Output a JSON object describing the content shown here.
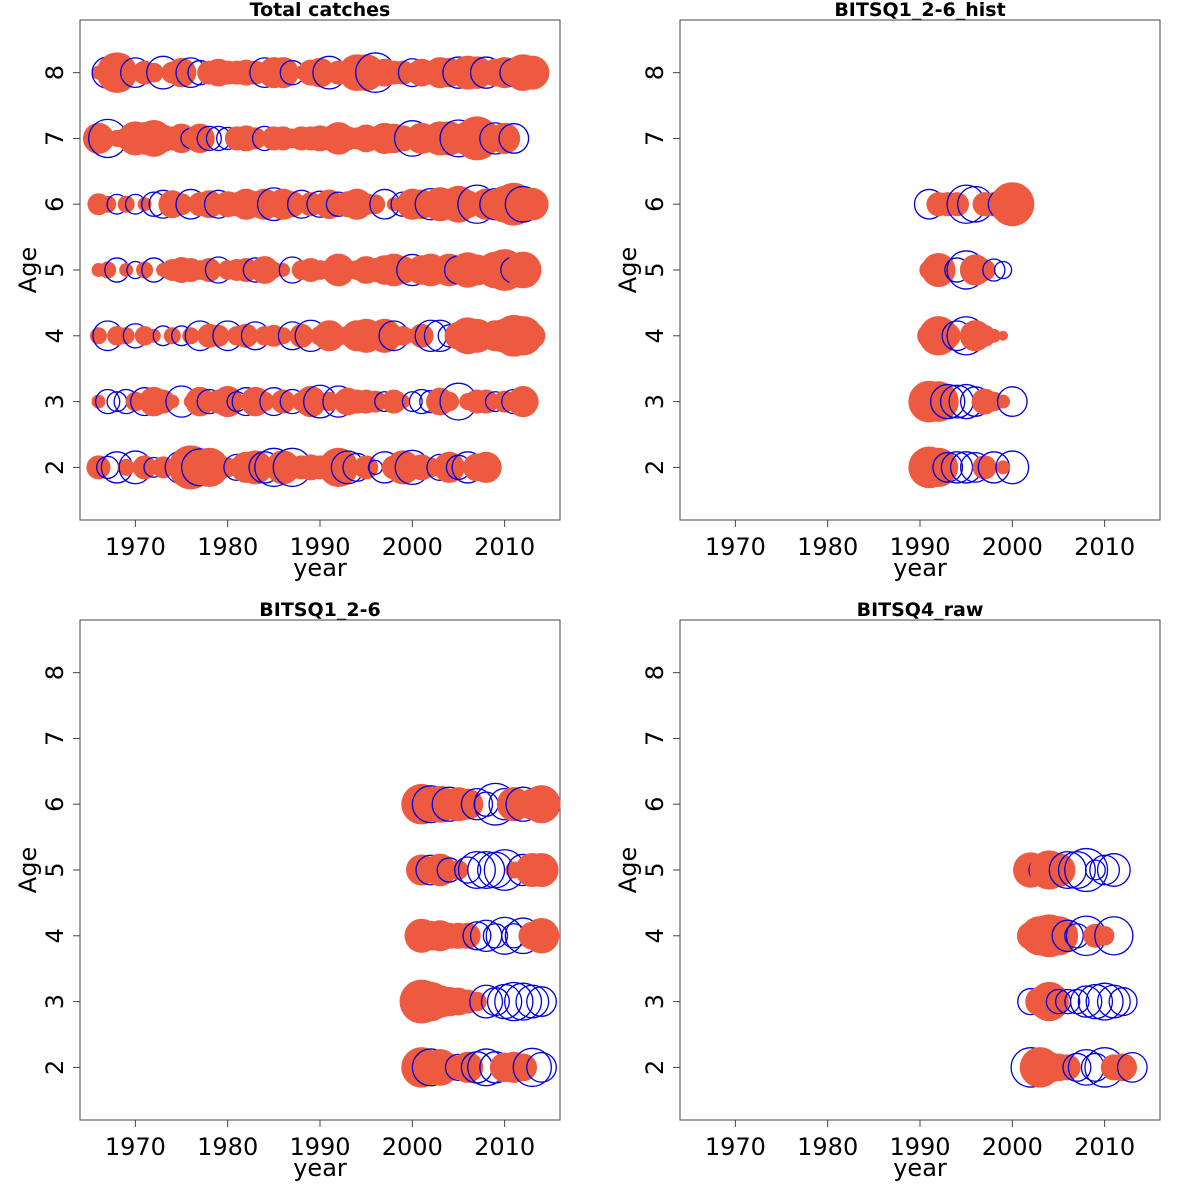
{
  "colors": {
    "positive": "#ee5a3f",
    "negative": "#0000dd",
    "axis": "#444444"
  },
  "chart_data": [
    {
      "type": "scatter",
      "title": "Total catches",
      "xlabel": "year",
      "ylabel": "Age",
      "xlim": [
        1964,
        2016
      ],
      "ylim": [
        1.2,
        8.8
      ],
      "xticks": [
        1970,
        1980,
        1990,
        2000,
        2010
      ],
      "yticks": [
        2,
        3,
        4,
        5,
        6,
        7,
        8
      ],
      "x_start": 1966,
      "ages": [
        2,
        3,
        4,
        5,
        6,
        7,
        8
      ],
      "rows": {
        "2": [
          0.3,
          -0.25,
          -0.5,
          0.15,
          -0.55,
          0.3,
          -0.2,
          0.25,
          0.1,
          -0.55,
          1.0,
          -0.7,
          0.8,
          0.35,
          0.2,
          -0.35,
          0.5,
          0.6,
          -0.5,
          -0.75,
          0.6,
          -0.75,
          0.3,
          0.35,
          0.3,
          0.15,
          0.8,
          -0.55,
          -0.4,
          0.3,
          -0.1,
          -0.5,
          0.3,
          0.6,
          -0.6,
          0.35,
          0.2,
          -0.35,
          0.5,
          -0.3,
          -0.5,
          0.4,
          0.5
        ],
        "3": [
          0.1,
          -0.3,
          -0.2,
          -0.3,
          0.2,
          -0.4,
          0.45,
          0.3,
          0.1,
          -0.5,
          0.1,
          0.45,
          -0.3,
          0.3,
          0.5,
          -0.2,
          -0.4,
          0.45,
          0.2,
          -0.4,
          0.3,
          -0.3,
          0.2,
          0.5,
          -0.55,
          0.2,
          -0.5,
          0.4,
          0.3,
          0.3,
          0.25,
          -0.2,
          0.3,
          0.1,
          -0.2,
          -0.3,
          -0.25,
          0.4,
          0.2,
          -0.7,
          0.15,
          0.3,
          0.3,
          -0.2,
          0.25,
          -0.3,
          0.5
        ],
        "4": [
          0.15,
          -0.45,
          0.2,
          0.15,
          -0.3,
          0.2,
          0.1,
          -0.2,
          0.15,
          -0.2,
          0.15,
          -0.45,
          0.3,
          0.25,
          -0.45,
          0.2,
          0.3,
          -0.4,
          0.2,
          0.25,
          0.15,
          -0.4,
          0.3,
          -0.5,
          0.2,
          0.5,
          0.2,
          0.2,
          0.5,
          0.6,
          0.4,
          0.6,
          -0.45,
          0.2,
          0.1,
          0.3,
          -0.5,
          -0.5,
          -0.25,
          0.4,
          0.7,
          0.6,
          0.3,
          0.5,
          0.6,
          0.9,
          0.8,
          0.35
        ],
        "5": [
          0.1,
          0.15,
          -0.3,
          0.1,
          -0.15,
          0.15,
          -0.3,
          0.1,
          0.25,
          0.35,
          0.3,
          0.2,
          0.3,
          -0.35,
          0.2,
          0.25,
          0.3,
          -0.3,
          0.4,
          0.15,
          0.1,
          -0.35,
          0.2,
          0.3,
          0.2,
          0.1,
          0.55,
          0.2,
          0.2,
          0.4,
          0.3,
          0.45,
          0.55,
          0.4,
          -0.5,
          0.45,
          0.55,
          0.3,
          0.55,
          -0.4,
          0.65,
          0.5,
          0.4,
          0.7,
          0.9,
          -0.35,
          0.7
        ],
        "6": [
          0.25,
          0.15,
          -0.2,
          0.15,
          -0.2,
          0.1,
          -0.3,
          -0.4,
          0.4,
          0.25,
          -0.45,
          0.3,
          0.4,
          -0.4,
          0.35,
          0.3,
          0.5,
          0.35,
          0.5,
          -0.55,
          0.5,
          0.35,
          -0.4,
          0.3,
          -0.35,
          0.45,
          -0.3,
          0.35,
          0.5,
          0.25,
          0.2,
          -0.45,
          0.1,
          -0.3,
          0.5,
          0.45,
          -0.5,
          0.6,
          0.5,
          0.7,
          0.4,
          -0.75,
          0.5,
          -0.5,
          0.7,
          0.95,
          -0.65,
          0.55
        ],
        "7": [
          0.5,
          -0.75,
          0.15,
          0.25,
          0.6,
          0.55,
          0.7,
          0.4,
          0.3,
          0.45,
          -0.2,
          0.45,
          -0.3,
          -0.3,
          -0.25,
          0.3,
          0.35,
          0.25,
          -0.3,
          0.3,
          0.3,
          0.2,
          0.3,
          0.3,
          0.35,
          0.3,
          0.55,
          0.3,
          0.25,
          0.4,
          0.3,
          0.5,
          0.45,
          0.35,
          -0.65,
          0.5,
          0.4,
          0.6,
          0.6,
          -0.7,
          0.6,
          1.0,
          0.55,
          -0.5,
          0.5,
          -0.45
        ],
        "8": [
          0.1,
          -0.5,
          0.85,
          0.15,
          -0.45,
          0.3,
          0.2,
          -0.55,
          0.25,
          0.45,
          -0.45,
          -0.3,
          0.3,
          0.4,
          0.3,
          0.3,
          0.35,
          0.3,
          -0.45,
          0.5,
          0.5,
          -0.3,
          0.1,
          0.35,
          0.45,
          -0.55,
          0.3,
          0.2,
          0.7,
          0.7,
          -0.8,
          0.4,
          0.3,
          0.3,
          -0.4,
          0.4,
          0.3,
          0.5,
          0.45,
          -0.5,
          0.6,
          0.55,
          -0.5,
          0.4,
          0.5,
          -0.4,
          0.7,
          0.6
        ]
      }
    },
    {
      "type": "scatter",
      "title": "BITSQ1_2-6_hist",
      "xlabel": "year",
      "ylabel": "Age",
      "xlim": [
        1964,
        2016
      ],
      "ylim": [
        1.2,
        8.8
      ],
      "xticks": [
        1970,
        1980,
        1990,
        2000,
        2010
      ],
      "yticks": [
        2,
        3,
        4,
        5,
        6,
        7,
        8
      ],
      "x_start": 1991,
      "ages": [
        2,
        3,
        4,
        5,
        6
      ],
      "rows": {
        "2": [
          0.9,
          0.8,
          -0.45,
          -0.5,
          -0.5,
          -0.45,
          0.3,
          -0.5,
          0.1,
          -0.55
        ],
        "3": [
          0.9,
          0.85,
          -0.6,
          -0.55,
          -0.6,
          -0.45,
          0.35,
          0.2,
          0.1,
          -0.45
        ],
        "4": [
          0.3,
          0.8,
          0.35,
          -0.45,
          -0.75,
          0.5,
          0.25,
          0.1,
          0.05
        ],
        "5": [
          0.2,
          0.6,
          0.1,
          -0.3,
          -0.75,
          0.5,
          0.25,
          -0.25,
          -0.15
        ],
        "6": [
          -0.45,
          0.3,
          0.3,
          0.3,
          -0.75,
          -0.65,
          0.3,
          0.3,
          -0.45,
          1.0
        ]
      }
    },
    {
      "type": "scatter",
      "title": "BITSQ1_2-6",
      "xlabel": "year",
      "ylabel": "Age",
      "xlim": [
        1964,
        2016
      ],
      "ylim": [
        1.2,
        8.8
      ],
      "xticks": [
        1970,
        1980,
        1990,
        2000,
        2010
      ],
      "yticks": [
        2,
        3,
        4,
        5,
        6,
        7,
        8
      ],
      "x_start": 2001,
      "ages": [
        2,
        3,
        4,
        5,
        6
      ],
      "rows": {
        "2": [
          0.85,
          -0.7,
          0.7,
          0.4,
          -0.35,
          0.5,
          -0.5,
          -0.7,
          -0.5,
          0.45,
          0.5,
          0.4,
          -0.75,
          -0.45
        ],
        "3": [
          1.0,
          0.8,
          0.55,
          0.45,
          0.4,
          0.3,
          0.2,
          -0.55,
          -0.4,
          -0.6,
          -0.75,
          -0.7,
          -0.55,
          -0.45
        ],
        "4": [
          0.6,
          0.45,
          0.5,
          0.35,
          0.35,
          0.35,
          -0.4,
          -0.5,
          -0.3,
          -0.7,
          -0.3,
          -0.65,
          0.4,
          0.65
        ],
        "5": [
          0.5,
          -0.45,
          0.55,
          -0.3,
          0.2,
          -0.35,
          -0.7,
          -0.7,
          -0.65,
          -0.85,
          0.15,
          -0.5,
          0.6,
          0.6
        ],
        "6": [
          0.85,
          -0.7,
          0.7,
          -0.6,
          0.6,
          0.5,
          -0.5,
          -0.3,
          -0.9,
          -0.5,
          0.6,
          -0.6,
          0.5,
          0.75
        ]
      }
    },
    {
      "type": "scatter",
      "title": "BITSQ4_raw",
      "xlabel": "year",
      "ylabel": "Age",
      "xlim": [
        1964,
        2016
      ],
      "ylim": [
        1.2,
        8.8
      ],
      "xticks": [
        1970,
        1980,
        1990,
        2000,
        2010
      ],
      "yticks": [
        2,
        3,
        4,
        5,
        6,
        7,
        8
      ],
      "x_start": 2002,
      "ages": [
        2,
        3,
        4,
        5
      ],
      "rows": {
        "2": [
          -0.8,
          0.85,
          0.5,
          0.4,
          0.35,
          -0.4,
          -0.65,
          -0.4,
          -0.8,
          0.35,
          0.4,
          -0.45
        ],
        "3": [
          -0.35,
          0.45,
          0.8,
          -0.3,
          -0.3,
          -0.3,
          -0.5,
          -0.6,
          -0.7,
          -0.55,
          -0.4
        ],
        "4": [
          0.4,
          0.8,
          0.95,
          0.8,
          -0.5,
          -0.3,
          -0.8,
          0.3,
          0.2,
          -0.75
        ],
        "5": [
          0.65,
          -0.25,
          0.8,
          0.6,
          -0.7,
          -0.7,
          -0.95,
          -0.2,
          -0.45,
          -0.55
        ]
      }
    }
  ]
}
